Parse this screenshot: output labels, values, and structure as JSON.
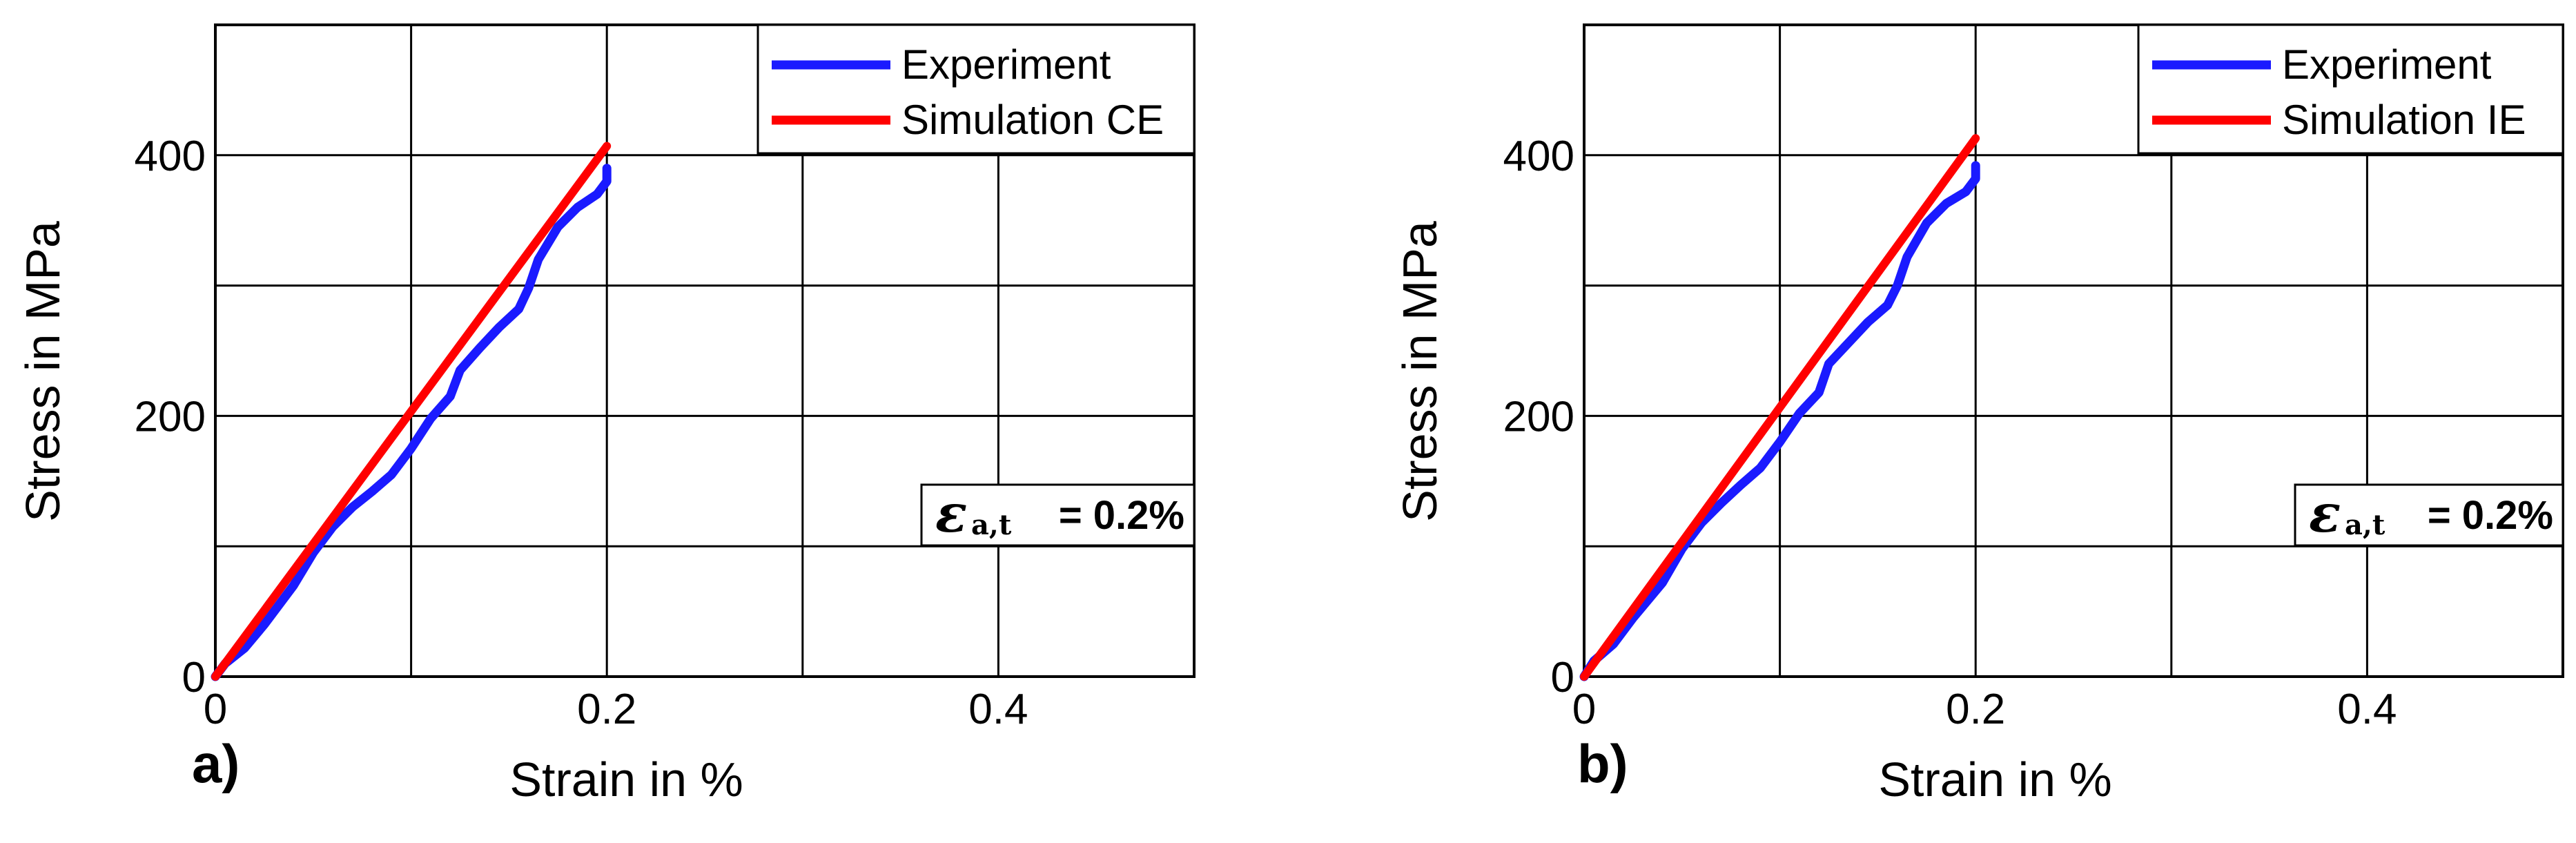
{
  "chart_data": [
    {
      "type": "line",
      "panel_label": "a)",
      "xlabel": "Strain in %",
      "ylabel": "Stress in MPa",
      "xlim": [
        0,
        0.5
      ],
      "ylim": [
        0,
        500
      ],
      "x_ticks": [
        0,
        0.1,
        0.2,
        0.3,
        0.4,
        0.5
      ],
      "x_tick_labels": [
        "0",
        "",
        "0.2",
        "",
        "0.4",
        ""
      ],
      "y_ticks": [
        0,
        100,
        200,
        300,
        400,
        500
      ],
      "y_tick_labels": [
        "0",
        "",
        "200",
        "",
        "400",
        ""
      ],
      "grid": true,
      "legend_position": "top-right",
      "annotation": {
        "symbol": "ε",
        "subscript": "a,t",
        "text": "= 0.2%"
      },
      "series": [
        {
          "name": "Experiment",
          "color": "#1a1aff",
          "x": [
            0,
            0.005,
            0.015,
            0.025,
            0.04,
            0.05,
            0.06,
            0.07,
            0.08,
            0.09,
            0.1,
            0.11,
            0.12,
            0.125,
            0.135,
            0.145,
            0.155,
            0.16,
            0.165,
            0.175,
            0.185,
            0.195,
            0.2,
            0.2
          ],
          "y": [
            0,
            10,
            22,
            40,
            70,
            95,
            115,
            130,
            142,
            155,
            175,
            198,
            215,
            235,
            252,
            268,
            282,
            298,
            320,
            345,
            360,
            370,
            380,
            390
          ]
        },
        {
          "name": "Simulation CE",
          "color": "#ff0000",
          "x": [
            0,
            0.2
          ],
          "y": [
            0,
            407
          ]
        }
      ]
    },
    {
      "type": "line",
      "panel_label": "b)",
      "xlabel": "Strain in %",
      "ylabel": "Stress in MPa",
      "xlim": [
        0,
        0.5
      ],
      "ylim": [
        0,
        500
      ],
      "x_ticks": [
        0,
        0.1,
        0.2,
        0.3,
        0.4,
        0.5
      ],
      "x_tick_labels": [
        "0",
        "",
        "0.2",
        "",
        "0.4",
        ""
      ],
      "y_ticks": [
        0,
        100,
        200,
        300,
        400,
        500
      ],
      "y_tick_labels": [
        "0",
        "",
        "200",
        "",
        "400",
        ""
      ],
      "grid": true,
      "legend_position": "top-right",
      "annotation": {
        "symbol": "ε",
        "subscript": "a,t",
        "text": "= 0.2%"
      },
      "series": [
        {
          "name": "Experiment",
          "color": "#1a1aff",
          "x": [
            0,
            0.005,
            0.015,
            0.025,
            0.04,
            0.05,
            0.06,
            0.07,
            0.08,
            0.09,
            0.1,
            0.11,
            0.12,
            0.125,
            0.135,
            0.145,
            0.155,
            0.16,
            0.165,
            0.175,
            0.185,
            0.195,
            0.2,
            0.2
          ],
          "y": [
            0,
            12,
            25,
            45,
            72,
            98,
            118,
            133,
            147,
            160,
            180,
            202,
            218,
            240,
            256,
            272,
            285,
            300,
            322,
            348,
            363,
            372,
            382,
            392
          ]
        },
        {
          "name": "Simulation IE",
          "color": "#ff0000",
          "x": [
            0,
            0.2
          ],
          "y": [
            0,
            413
          ]
        }
      ]
    }
  ]
}
